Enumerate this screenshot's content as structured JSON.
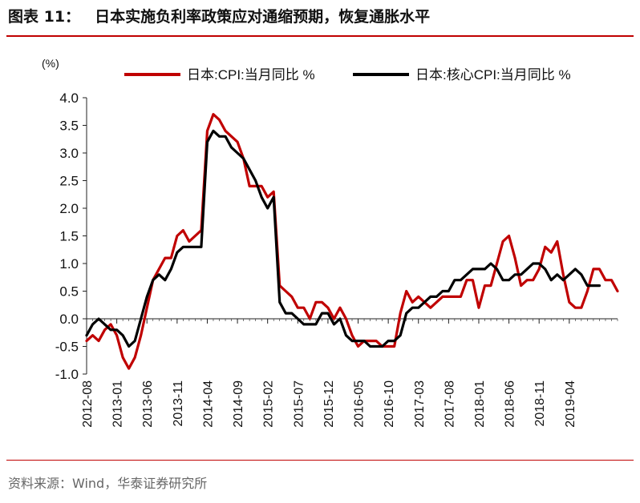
{
  "header": {
    "figure_label": "图表 11：",
    "title": "日本实施负利率政策应对通缩预期，恢复通胀水平"
  },
  "footer": {
    "source": "资料来源：Wind，华泰证券研究所"
  },
  "colors": {
    "accent": "#c00000",
    "series_cpi": "#c00000",
    "series_core": "#000000",
    "axis": "#222222"
  },
  "chart_data": {
    "type": "line",
    "title": "",
    "unit_label": "(%)",
    "xlabel": "",
    "ylabel": "",
    "ylim": [
      -1.0,
      4.0
    ],
    "yticks": [
      "4.0",
      "3.5",
      "3.0",
      "2.5",
      "2.0",
      "1.5",
      "1.0",
      "0.5",
      "0.0",
      "-0.5",
      "-1.0"
    ],
    "xtick_labels": [
      "2012-08",
      "2013-01",
      "2013-06",
      "2013-11",
      "2014-04",
      "2014-09",
      "2015-02",
      "2015-07",
      "2015-12",
      "2016-05",
      "2016-10",
      "2017-03",
      "2017-08",
      "2018-01",
      "2018-06",
      "2018-11",
      "2019-04"
    ],
    "x_start": "2012-08",
    "legend_position": "top",
    "grid": false,
    "series": [
      {
        "name": "日本:CPI:当月同比 %",
        "values": [
          -0.4,
          -0.3,
          -0.4,
          -0.2,
          -0.1,
          -0.3,
          -0.7,
          -0.9,
          -0.7,
          -0.3,
          0.2,
          0.7,
          0.9,
          1.1,
          1.1,
          1.5,
          1.6,
          1.4,
          1.5,
          1.6,
          3.4,
          3.7,
          3.6,
          3.4,
          3.3,
          3.2,
          2.9,
          2.4,
          2.4,
          2.4,
          2.2,
          2.3,
          0.6,
          0.5,
          0.4,
          0.2,
          0.2,
          0.0,
          0.3,
          0.3,
          0.2,
          0.0,
          0.2,
          0.0,
          -0.3,
          -0.5,
          -0.4,
          -0.4,
          -0.4,
          -0.5,
          -0.5,
          -0.5,
          0.1,
          0.5,
          0.3,
          0.4,
          0.3,
          0.2,
          0.3,
          0.4,
          0.4,
          0.4,
          0.4,
          0.7,
          0.7,
          0.2,
          0.6,
          0.6,
          1.0,
          1.4,
          1.5,
          1.1,
          0.6,
          0.7,
          0.7,
          0.9,
          1.3,
          1.2,
          1.4,
          0.8,
          0.3,
          0.2,
          0.2,
          0.5,
          0.9,
          0.9,
          0.7,
          0.7,
          0.5
        ]
      },
      {
        "name": "日本:核心CPI:当月同比 %",
        "values": [
          -0.3,
          -0.1,
          0.0,
          -0.1,
          -0.2,
          -0.2,
          -0.3,
          -0.5,
          -0.4,
          0.0,
          0.4,
          0.7,
          0.8,
          0.7,
          0.9,
          1.2,
          1.3,
          1.3,
          1.3,
          1.3,
          3.2,
          3.4,
          3.3,
          3.3,
          3.1,
          3.0,
          2.9,
          2.7,
          2.5,
          2.2,
          2.0,
          2.2,
          0.3,
          0.1,
          0.1,
          0.0,
          -0.1,
          -0.1,
          -0.1,
          0.1,
          0.1,
          -0.1,
          0.0,
          -0.3,
          -0.4,
          -0.4,
          -0.4,
          -0.5,
          -0.5,
          -0.5,
          -0.4,
          -0.4,
          -0.3,
          0.1,
          0.2,
          0.2,
          0.3,
          0.4,
          0.4,
          0.5,
          0.5,
          0.7,
          0.7,
          0.8,
          0.9,
          0.9,
          0.9,
          1.0,
          0.9,
          0.7,
          0.7,
          0.8,
          0.8,
          0.9,
          1.0,
          1.0,
          0.9,
          0.7,
          0.8,
          0.7,
          0.8,
          0.9,
          0.8,
          0.6,
          0.6,
          0.6
        ]
      }
    ]
  }
}
